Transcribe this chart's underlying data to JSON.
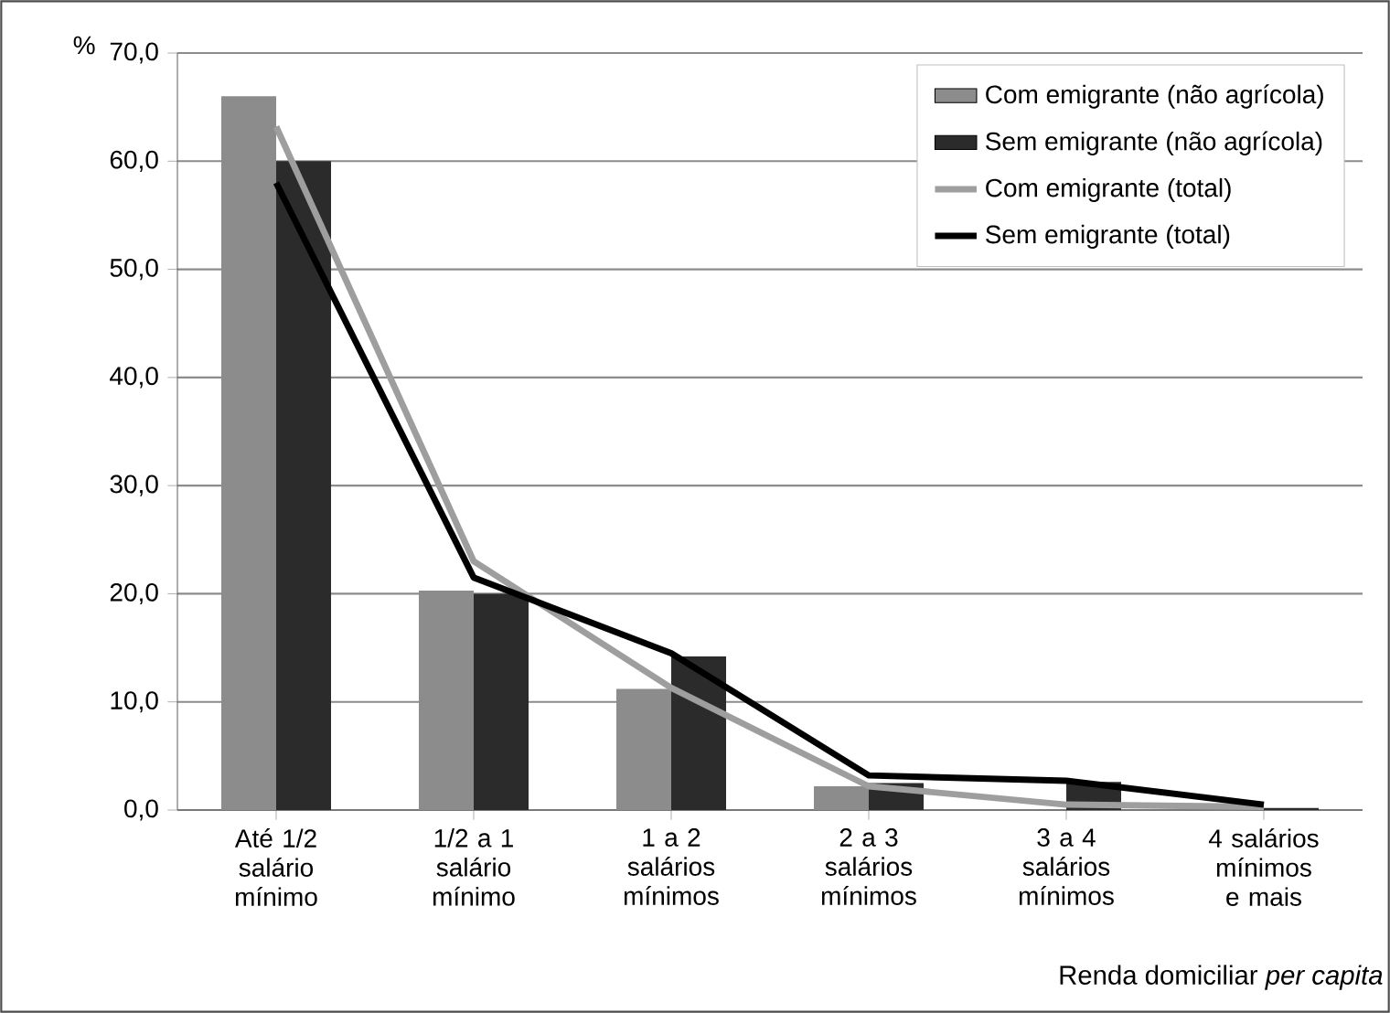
{
  "chart_data": {
    "type": "bar",
    "ylabel": "%",
    "xlabel": "Renda domiciliar *per capita*",
    "categories": [
      "Até 1/2 salário mínimo",
      "1/2 a 1 salário mínimo",
      "1 a 2 salários mínimos",
      "2 a 3 salários mínimos",
      "3 a 4 salários mínimos",
      "4 salários mínimos e mais"
    ],
    "series": [
      {
        "name": "Com emigrante (não agrícola)",
        "color": "#8c8c8c",
        "values": [
          66.0,
          20.3,
          11.2,
          2.2,
          null,
          null
        ]
      },
      {
        "name": "Sem emigrante (não agrícola)",
        "color": "#2b2b2b",
        "values": [
          60.0,
          20.0,
          14.2,
          2.5,
          2.6,
          0.2
        ]
      },
      {
        "name": "Com emigrante (total)",
        "type": "line",
        "color": "#9e9e9e",
        "values": [
          63.2,
          23.0,
          11.3,
          2.2,
          0.5,
          0.3
        ]
      },
      {
        "name": "Sem emigrante (total)",
        "type": "line",
        "color": "#000000",
        "values": [
          58.0,
          21.5,
          14.5,
          3.2,
          2.7,
          0.5
        ]
      }
    ],
    "ylim": [
      0,
      70
    ],
    "yticks": [
      {
        "value": 0,
        "label": "0,0"
      },
      {
        "value": 10,
        "label": "10,0"
      },
      {
        "value": 20,
        "label": "20,0"
      },
      {
        "value": 30,
        "label": "30,0"
      },
      {
        "value": 40,
        "label": "40,0"
      },
      {
        "value": 50,
        "label": "50,0"
      },
      {
        "value": 60,
        "label": "60,0"
      },
      {
        "value": 70,
        "label": "70,0"
      }
    ],
    "grid": "y",
    "legend": "top right"
  }
}
